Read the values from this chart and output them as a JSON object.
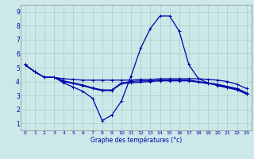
{
  "xlabel": "Graphe des températures (°c)",
  "bg_color": "#cce8e8",
  "grid_color": "#aacccc",
  "line_color": "#0000aa",
  "spine_color": "#888888",
  "xlim": [
    -0.5,
    23.5
  ],
  "ylim": [
    0.5,
    9.5
  ],
  "xticks": [
    0,
    1,
    2,
    3,
    4,
    5,
    6,
    7,
    8,
    9,
    10,
    11,
    12,
    13,
    14,
    15,
    16,
    17,
    18,
    19,
    20,
    21,
    22,
    23
  ],
  "yticks": [
    1,
    2,
    3,
    4,
    5,
    6,
    7,
    8,
    9
  ],
  "line1_x": [
    0,
    1,
    2,
    3,
    4,
    5,
    6,
    7,
    8,
    9,
    10,
    11,
    12,
    13,
    14,
    15,
    16,
    17,
    18,
    19,
    20,
    21,
    22,
    23
  ],
  "line1_y": [
    5.2,
    4.7,
    4.3,
    4.3,
    4.2,
    4.15,
    4.1,
    4.1,
    4.1,
    4.1,
    4.1,
    4.1,
    4.15,
    4.15,
    4.2,
    4.2,
    4.2,
    4.2,
    4.2,
    4.15,
    4.1,
    4.0,
    3.8,
    3.5
  ],
  "line2_x": [
    0,
    1,
    2,
    3,
    4,
    5,
    6,
    7,
    8,
    9,
    10,
    11,
    12,
    13,
    14,
    15,
    16,
    17,
    18,
    19,
    20,
    21,
    22,
    23
  ],
  "line2_y": [
    5.2,
    4.7,
    4.3,
    4.3,
    3.9,
    3.6,
    3.3,
    2.8,
    1.2,
    1.6,
    2.6,
    4.4,
    6.4,
    7.8,
    8.7,
    8.7,
    7.6,
    5.2,
    4.2,
    3.9,
    3.7,
    3.55,
    3.4,
    3.1
  ],
  "line3_x": [
    0,
    1,
    2,
    3,
    4,
    5,
    6,
    7,
    8,
    9,
    10,
    11,
    12,
    13,
    14,
    15,
    16,
    17,
    18,
    19,
    20,
    21,
    22,
    23
  ],
  "line3_y": [
    5.2,
    4.7,
    4.3,
    4.3,
    4.05,
    3.9,
    3.75,
    3.55,
    3.4,
    3.4,
    3.9,
    4.0,
    4.05,
    4.05,
    4.1,
    4.1,
    4.1,
    4.1,
    4.0,
    3.9,
    3.8,
    3.65,
    3.5,
    3.2
  ],
  "line4_x": [
    0,
    1,
    2,
    3,
    4,
    5,
    6,
    7,
    8,
    9,
    10,
    11,
    12,
    13,
    14,
    15,
    16,
    17,
    18,
    19,
    20,
    21,
    22,
    23
  ],
  "line4_y": [
    5.2,
    4.7,
    4.3,
    4.3,
    4.0,
    3.85,
    3.7,
    3.5,
    3.35,
    3.35,
    3.85,
    3.9,
    3.95,
    4.0,
    4.05,
    4.05,
    4.05,
    4.05,
    3.95,
    3.85,
    3.75,
    3.6,
    3.45,
    3.1
  ]
}
